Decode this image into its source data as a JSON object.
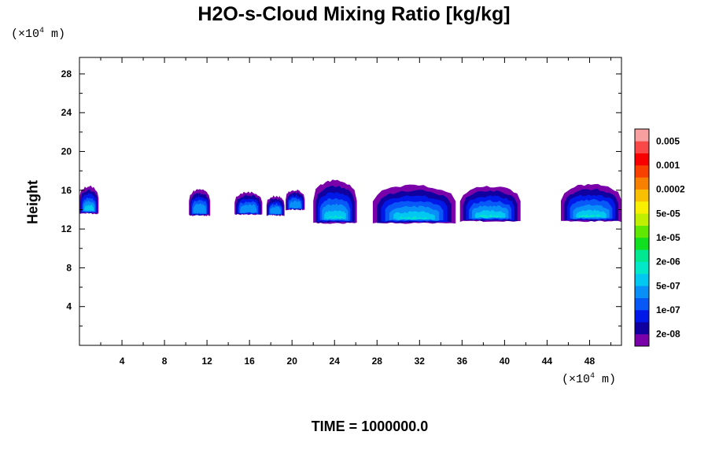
{
  "chart_data": {
    "type": "heatmap",
    "title": "H2O-s-Cloud Mixing Ratio [kg/kg]",
    "ylabel": "Height",
    "x_unit": "(×10",
    "x_unit_exp": "4",
    "x_unit_tail": " m)",
    "y_unit": "(×10",
    "y_unit_exp": "4",
    "y_unit_tail": " m)",
    "footer": "TIME = 1000000.0",
    "xlim": [
      0,
      51
    ],
    "ylim": [
      0,
      29.7
    ],
    "x_ticks": [
      4,
      8,
      12,
      16,
      20,
      24,
      28,
      32,
      36,
      40,
      44,
      48
    ],
    "y_ticks": [
      4,
      8,
      12,
      16,
      20,
      24,
      28
    ],
    "colorbar": {
      "colors": [
        "#7a00aa",
        "#1000a0",
        "#0018e8",
        "#0858f8",
        "#0890f8",
        "#00c8f0",
        "#00e8c8",
        "#00e890",
        "#10e020",
        "#60e800",
        "#c0f000",
        "#f8f000",
        "#f8c000",
        "#f88000",
        "#f84000",
        "#f80000",
        "#f84848",
        "#f8a0a0"
      ],
      "labels": [
        "2e-08",
        "1e-07",
        "5e-07",
        "2e-06",
        "1e-05",
        "5e-05",
        "0.0002",
        "0.001",
        "0.005"
      ]
    },
    "clouds": [
      {
        "x0": 0,
        "x1": 1.8,
        "base": 13.6,
        "top": 16.4,
        "peak": 5
      },
      {
        "x0": 10.3,
        "x1": 12.3,
        "base": 13.4,
        "top": 16.1,
        "peak": 4
      },
      {
        "x0": 14.6,
        "x1": 17.2,
        "base": 13.5,
        "top": 15.8,
        "peak": 4
      },
      {
        "x0": 17.6,
        "x1": 19.3,
        "base": 13.4,
        "top": 15.4,
        "peak": 4
      },
      {
        "x0": 19.4,
        "x1": 21.2,
        "base": 14.0,
        "top": 16.0,
        "peak": 4
      },
      {
        "x0": 22.0,
        "x1": 26.1,
        "base": 12.6,
        "top": 17.0,
        "peak": 7
      },
      {
        "x0": 27.6,
        "x1": 35.4,
        "base": 12.6,
        "top": 16.5,
        "peak": 7
      },
      {
        "x0": 35.8,
        "x1": 41.5,
        "base": 12.8,
        "top": 16.4,
        "peak": 6
      },
      {
        "x0": 45.3,
        "x1": 51,
        "base": 12.8,
        "top": 16.6,
        "peak": 7
      }
    ]
  }
}
